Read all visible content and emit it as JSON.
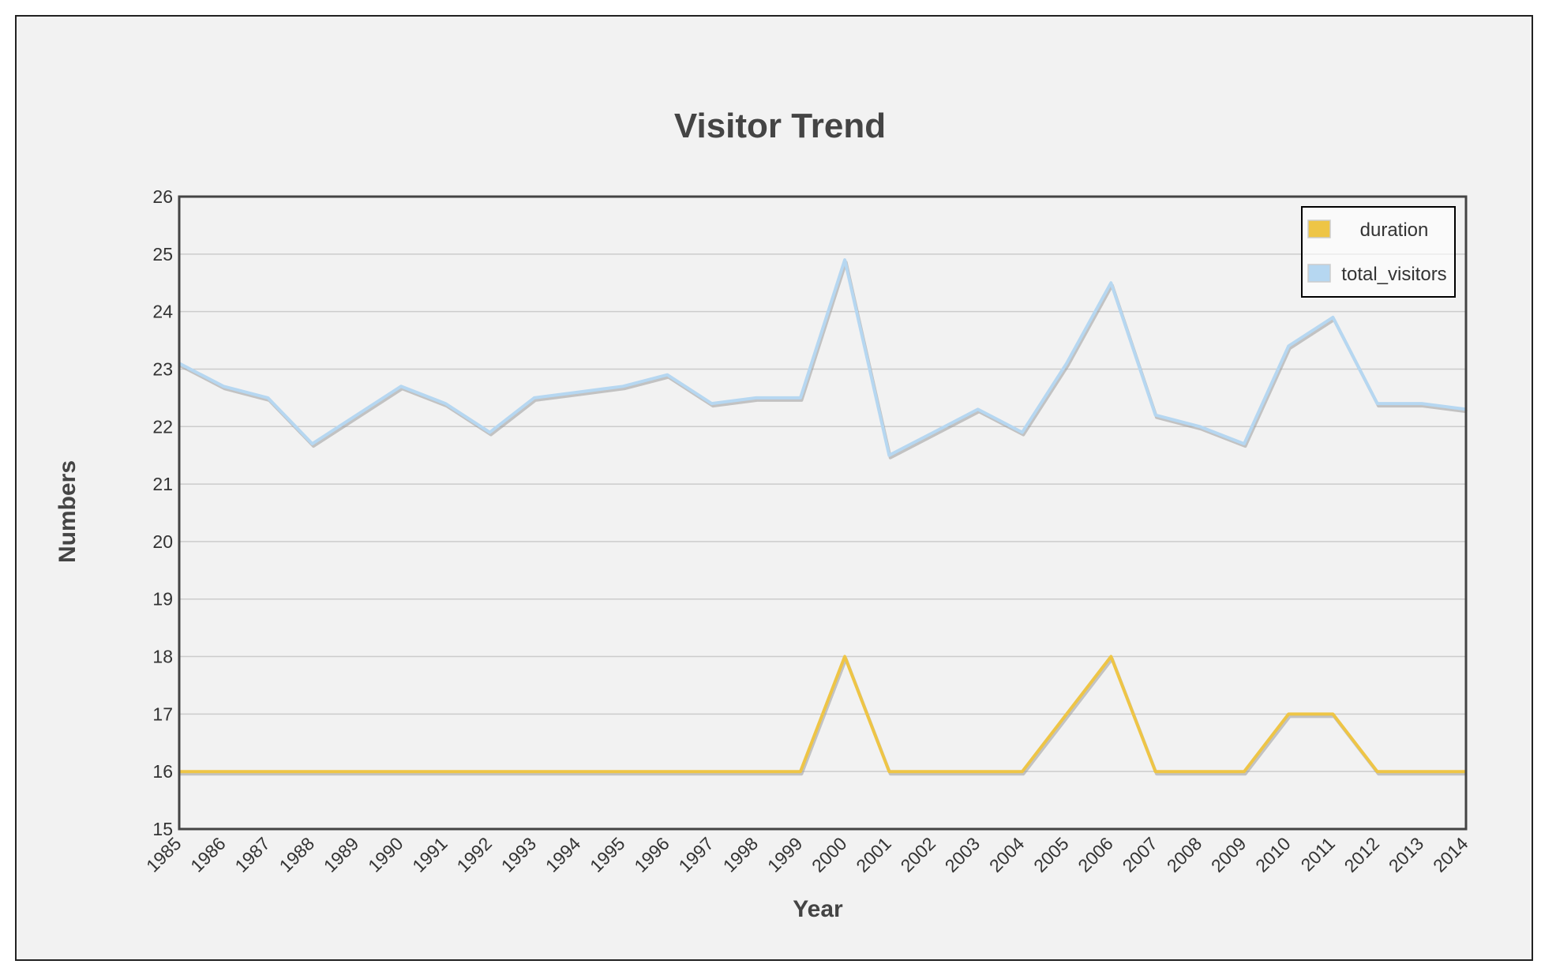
{
  "chart_data": {
    "type": "line",
    "title": "Visitor Trend",
    "xlabel": "Year",
    "ylabel": "Numbers",
    "ylim": [
      15,
      26
    ],
    "y_ticks": [
      "15",
      "16",
      "17",
      "18",
      "19",
      "20",
      "21",
      "22",
      "23",
      "24",
      "25",
      "26"
    ],
    "grid": true,
    "legend_position": "top-right",
    "categories": [
      "1985",
      "1986",
      "1987",
      "1988",
      "1989",
      "1990",
      "1991",
      "1992",
      "1993",
      "1994",
      "1995",
      "1996",
      "1997",
      "1998",
      "1999",
      "2000",
      "2001",
      "2002",
      "2003",
      "2004",
      "2005",
      "2006",
      "2007",
      "2008",
      "2009",
      "2010",
      "2011",
      "2012",
      "2013",
      "2014"
    ],
    "series": [
      {
        "name": "duration",
        "color": "#eec546",
        "values": [
          16,
          16,
          16,
          16,
          16,
          16,
          16,
          16,
          16,
          16,
          16,
          16,
          16,
          16,
          16,
          18,
          16,
          16,
          16,
          16,
          17,
          18,
          16,
          16,
          16,
          17,
          17,
          16,
          16,
          16
        ]
      },
      {
        "name": "total_visitors",
        "color": "#b6d7f1",
        "values": [
          23.1,
          22.7,
          22.5,
          21.7,
          22.2,
          22.7,
          22.4,
          21.9,
          22.5,
          22.6,
          22.7,
          22.9,
          22.4,
          22.5,
          22.5,
          24.9,
          21.5,
          21.9,
          22.3,
          21.9,
          23.1,
          24.5,
          22.2,
          22.0,
          21.7,
          23.4,
          23.9,
          22.4,
          22.4,
          22.3
        ]
      }
    ]
  }
}
